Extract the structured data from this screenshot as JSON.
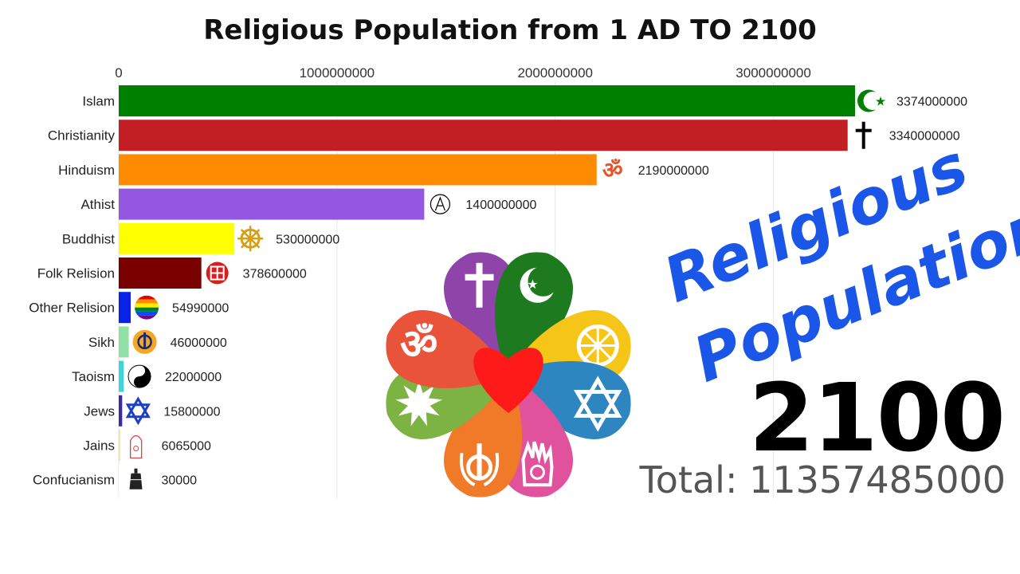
{
  "title": "Religious Population from 1 AD TO 2100",
  "overlay_text": [
    "Religious",
    "Population"
  ],
  "year": "2100",
  "total": "Total: 11357485000",
  "chart_data": {
    "type": "bar",
    "orientation": "horizontal",
    "title": "Religious Population from 1 AD TO 2100",
    "xlim": [
      0,
      3374000000
    ],
    "x_ticks": [
      0,
      1000000000,
      2000000000,
      3000000000
    ],
    "x_tick_labels": [
      "0",
      "1000000000",
      "2000000000",
      "3000000000"
    ],
    "grid": true,
    "categories": [
      "Islam",
      "Christianity",
      "Hinduism",
      "Athist",
      "Buddhist",
      "Folk Relision",
      "Other Relision",
      "Sikh",
      "Taoism",
      "Jews",
      "Jains",
      "Confucianism"
    ],
    "values": [
      3374000000,
      3340000000,
      2190000000,
      1400000000,
      530000000,
      378600000,
      54990000,
      46000000,
      22000000,
      15800000,
      6065000,
      30000
    ],
    "value_labels": [
      "3374000000",
      "3340000000",
      "2190000000",
      "1400000000",
      "530000000",
      "378600000",
      "54990000",
      "46000000",
      "22000000",
      "15800000",
      "6065000",
      "30000"
    ],
    "colors": [
      "#008000",
      "#c11f24",
      "#ff8c00",
      "#9457e2",
      "#ffff00",
      "#7a0000",
      "#0a22e6",
      "#90e0a8",
      "#3ad5dd",
      "#3c2aa0",
      "#f0e090",
      "#ffffff"
    ],
    "icons": [
      "crescent-star-icon",
      "cross-icon",
      "om-icon",
      "atheism-icon",
      "dharma-wheel-icon",
      "folk-symbol-icon",
      "rainbow-icon",
      "khanda-icon",
      "yin-yang-icon",
      "star-of-david-icon",
      "jain-icon",
      "bell-icon"
    ]
  },
  "flower_colors": [
    "#8e44a8",
    "#1e7a1e",
    "#f5c518",
    "#2e86c1",
    "#e0529c",
    "#f07a28",
    "#7cb342",
    "#e8533a",
    "#ff1a1a"
  ]
}
